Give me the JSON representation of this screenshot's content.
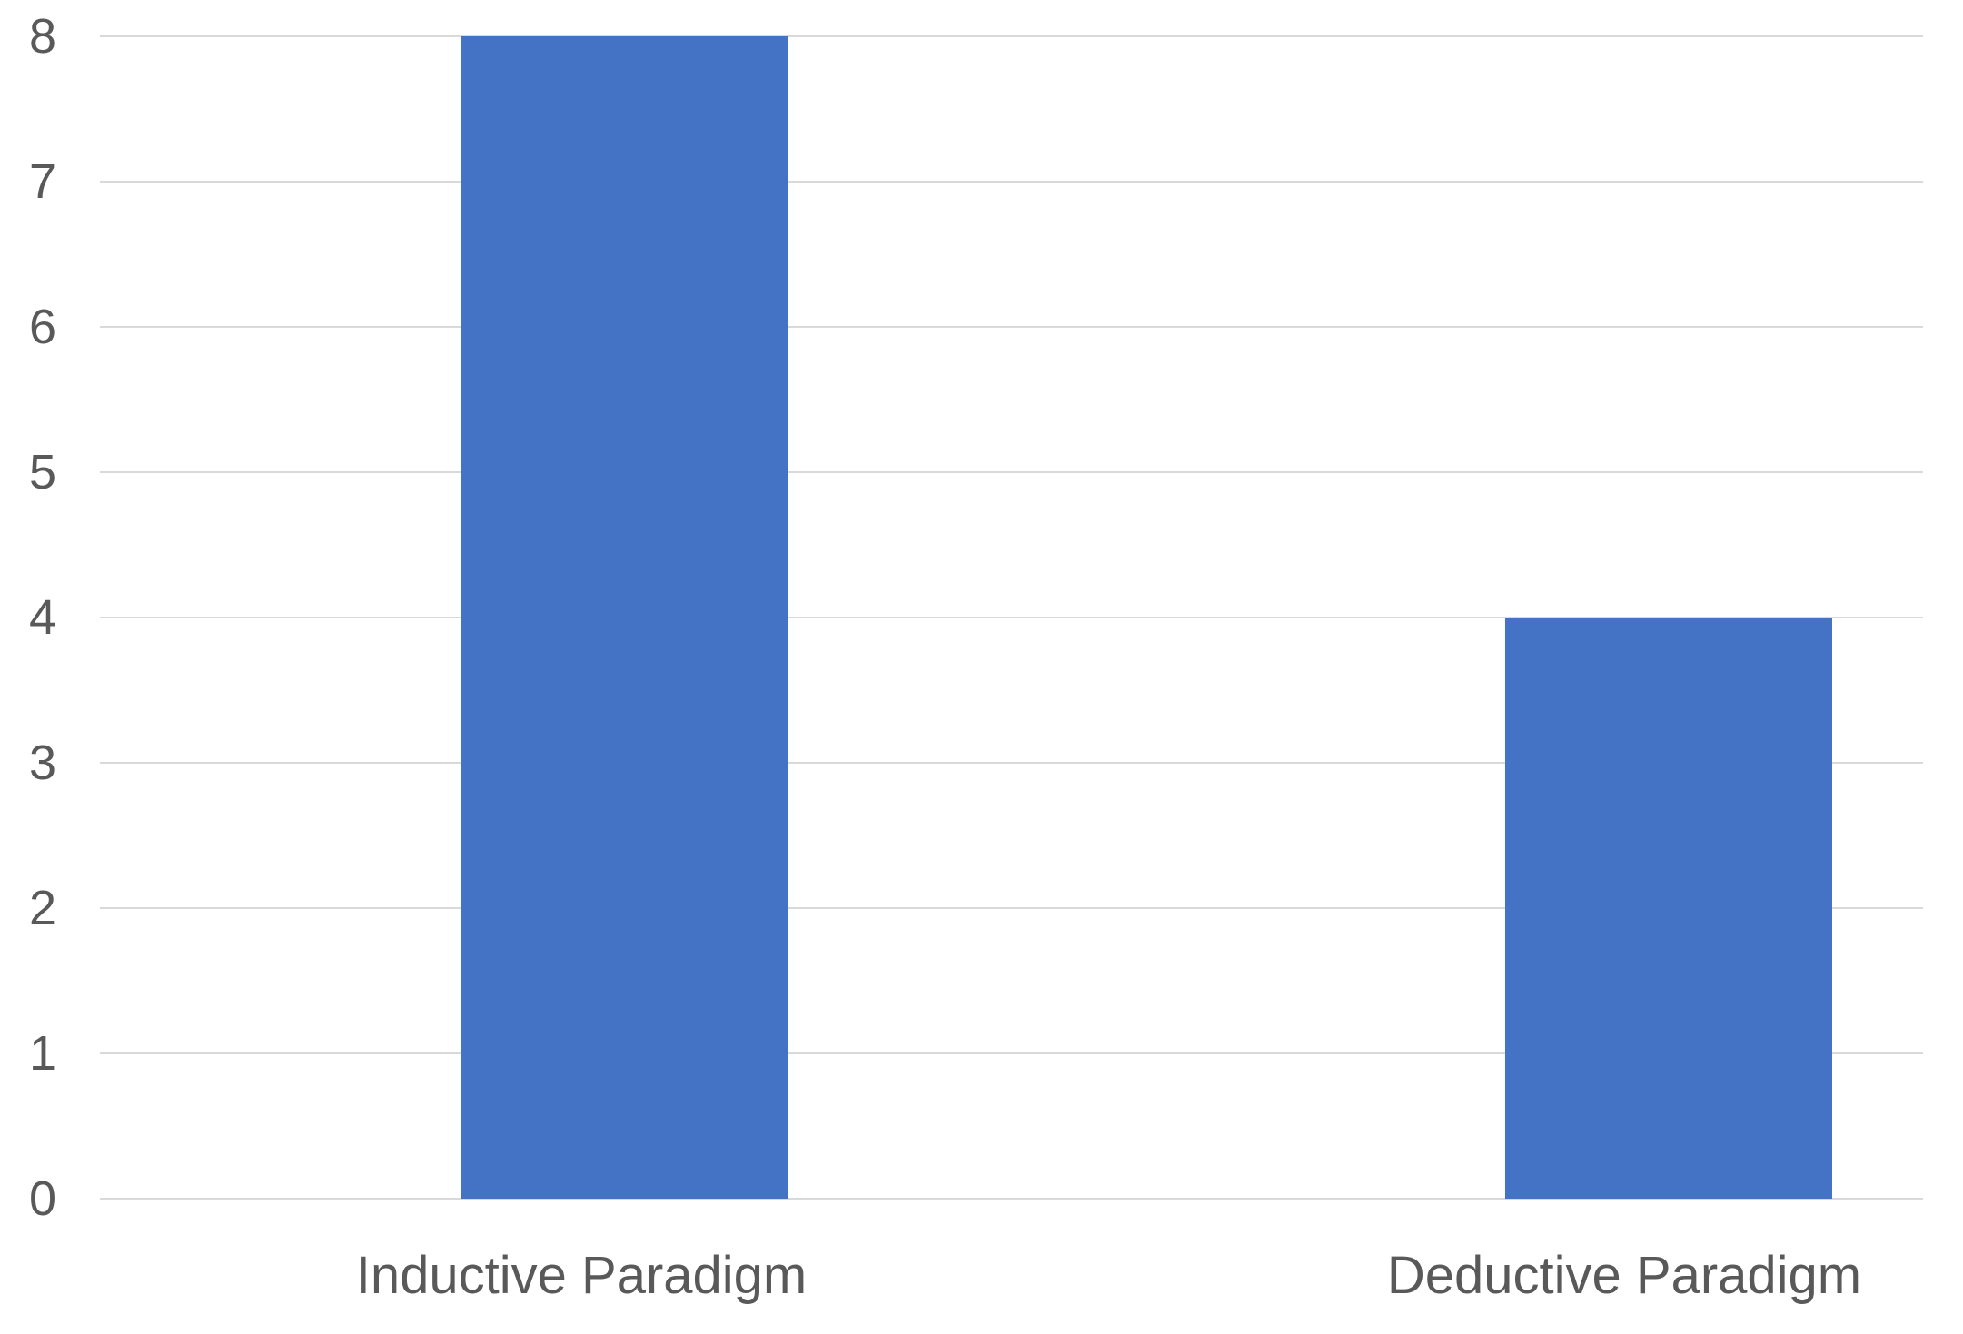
{
  "chart_data": {
    "type": "bar",
    "categories": [
      "Inductive Paradigm",
      "Deductive Paradigm"
    ],
    "values": [
      8,
      4
    ],
    "title": "",
    "xlabel": "",
    "ylabel": "",
    "ylim": [
      0,
      8
    ],
    "yticks": [
      0,
      1,
      2,
      3,
      4,
      5,
      6,
      7,
      8
    ],
    "grid": true,
    "legend": false,
    "colors": {
      "bar": "#4472C4",
      "gridline": "#D9D9D9",
      "axis_line": "#D9D9D9",
      "text": "#595959",
      "background": "#FFFFFF"
    }
  }
}
